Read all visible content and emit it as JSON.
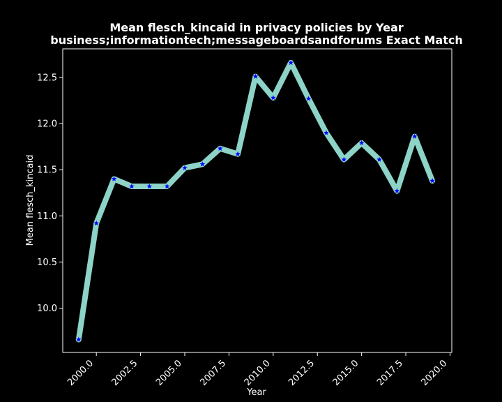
{
  "chart_data": {
    "type": "line",
    "title": "Mean flesch_kincaid in privacy policies by Year",
    "subtitle": "business;informationtech;messageboardsandforums Exact Match",
    "xlabel": "Year",
    "ylabel": "Mean flesch_kincaid",
    "xlim": [
      1998.1,
      2020.1
    ],
    "ylim": [
      9.52,
      12.81
    ],
    "x_ticks": [
      2000.0,
      2002.5,
      2005.0,
      2007.5,
      2010.0,
      2012.5,
      2015.0,
      2017.5,
      2020.0
    ],
    "x_tick_labels": [
      "2000.0",
      "2002.5",
      "2005.0",
      "2007.5",
      "2010.0",
      "2012.5",
      "2015.0",
      "2017.5",
      "2020.0"
    ],
    "y_ticks": [
      10.0,
      10.5,
      11.0,
      11.5,
      12.0,
      12.5
    ],
    "y_tick_labels": [
      "10.0",
      "10.5",
      "11.0",
      "11.5",
      "12.0",
      "12.5"
    ],
    "grid": false,
    "line_color": "#8dd3c7",
    "marker_color": "#0000ff",
    "marker": "star",
    "series": [
      {
        "x": [
          1999,
          2000,
          2001,
          2002,
          2003,
          2004,
          2005,
          2006,
          2007,
          2008,
          2009,
          2010,
          2011,
          2012,
          2013,
          2014,
          2015,
          2016,
          2017,
          2018,
          2019
        ],
        "values": [
          9.66,
          10.92,
          11.4,
          11.32,
          11.32,
          11.32,
          11.52,
          11.56,
          11.73,
          11.67,
          12.51,
          12.28,
          12.66,
          12.27,
          11.9,
          11.61,
          11.79,
          11.61,
          11.27,
          11.86,
          11.38
        ]
      }
    ]
  }
}
